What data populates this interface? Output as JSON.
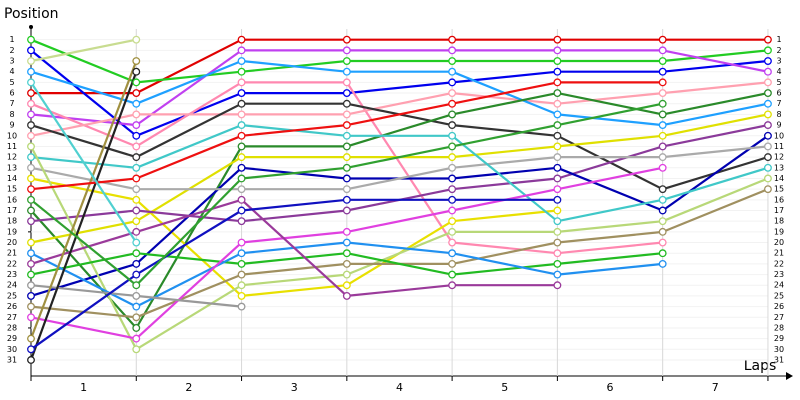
{
  "chart_data": {
    "type": "position-line",
    "y_label": "Position",
    "x_label": "Laps",
    "x": [
      0,
      1,
      2,
      3,
      4,
      5,
      6,
      7
    ],
    "xlim": [
      0,
      7.2
    ],
    "xticks": [
      {
        "value": 0.5,
        "label": "1"
      },
      {
        "value": 1.5,
        "label": "2"
      },
      {
        "value": 2.5,
        "label": "3"
      },
      {
        "value": 3.5,
        "label": "4"
      },
      {
        "value": 4.5,
        "label": "5"
      },
      {
        "value": 5.5,
        "label": "6"
      },
      {
        "value": 6.5,
        "label": "7"
      }
    ],
    "ylim": [
      32.5,
      0
    ],
    "yticks": [
      1,
      2,
      3,
      4,
      5,
      6,
      7,
      8,
      9,
      10,
      11,
      12,
      13,
      14,
      15,
      16,
      17,
      18,
      19,
      20,
      21,
      22,
      23,
      24,
      25,
      26,
      27,
      28,
      29,
      30,
      31
    ],
    "grid": true,
    "series": [
      {
        "color": "#e00000",
        "values": [
          6,
          6,
          1,
          1,
          1,
          1,
          1,
          1
        ]
      },
      {
        "color": "#22cc22",
        "values": [
          1,
          5,
          4,
          3,
          3,
          3,
          3,
          2
        ]
      },
      {
        "color": "#0000ee",
        "values": [
          2,
          10,
          6,
          6,
          5,
          4,
          4,
          3
        ]
      },
      {
        "color": "#c040f0",
        "values": [
          8,
          9,
          2,
          2,
          2,
          2,
          2,
          4
        ]
      },
      {
        "color": "#ff88b0",
        "values": [
          7,
          11,
          5,
          5,
          20,
          21,
          20,
          null
        ]
      },
      {
        "color": "#ffa0b0",
        "values": [
          10,
          8,
          8,
          8,
          6,
          7,
          6,
          5
        ]
      },
      {
        "color": "#1ea0ff",
        "values": [
          4,
          7,
          3,
          4,
          4,
          8,
          9,
          7
        ]
      },
      {
        "color": "#333333",
        "values": [
          9,
          12,
          7,
          7,
          9,
          10,
          15,
          12
        ]
      },
      {
        "color": "#2a8a2a",
        "values": [
          17,
          28,
          11,
          11,
          8,
          6,
          8,
          6
        ]
      },
      {
        "color": "#e0e000",
        "values": [
          20,
          18,
          12,
          12,
          12,
          11,
          10,
          8
        ]
      },
      {
        "color": "#e8e000",
        "values": [
          14,
          16,
          25,
          24,
          18,
          17,
          null,
          null
        ]
      },
      {
        "color": "#8b3a9a",
        "values": [
          18,
          17,
          18,
          17,
          15,
          14,
          11,
          9
        ]
      },
      {
        "color": "#0000b0",
        "values": [
          25,
          22,
          13,
          14,
          14,
          13,
          17,
          10
        ]
      },
      {
        "color": "#aaaaaa",
        "values": [
          13,
          15,
          15,
          15,
          13,
          12,
          12,
          11
        ]
      },
      {
        "color": "#40c8c8",
        "values": [
          12,
          13,
          9,
          10,
          10,
          18,
          16,
          13
        ]
      },
      {
        "color": "#b8d878",
        "values": [
          11,
          30,
          24,
          23,
          19,
          19,
          18,
          14
        ]
      },
      {
        "color": "#a09060",
        "values": [
          26,
          27,
          23,
          22,
          22,
          20,
          19,
          15
        ]
      },
      {
        "color": "#22bb22",
        "values": [
          23,
          21,
          22,
          21,
          23,
          22,
          21,
          null
        ]
      },
      {
        "color": "#2090f0",
        "values": [
          21,
          26,
          21,
          20,
          21,
          23,
          22,
          null
        ]
      },
      {
        "color": "#e040e0",
        "values": [
          27,
          29,
          20,
          19,
          17,
          15,
          13,
          null
        ]
      },
      {
        "color": "#9a3a9a",
        "values": [
          22,
          19,
          16,
          25,
          24,
          24,
          null,
          null
        ]
      },
      {
        "color": "#999999",
        "values": [
          24,
          25,
          26,
          null,
          null,
          null,
          null,
          null
        ]
      },
      {
        "color": "#222222",
        "values": [
          31,
          4,
          null,
          null,
          null,
          null,
          null,
          null
        ]
      },
      {
        "color": "#a09040",
        "values": [
          29,
          3,
          null,
          null,
          null,
          null,
          null,
          null
        ]
      },
      {
        "color": "#1010c0",
        "values": [
          30,
          23,
          17,
          16,
          16,
          16,
          null,
          null
        ]
      },
      {
        "color": "#30a030",
        "values": [
          16,
          24,
          14,
          13,
          11,
          9,
          7,
          null
        ]
      },
      {
        "color": "#ee1010",
        "values": [
          15,
          14,
          10,
          9,
          7,
          5,
          5,
          null
        ]
      },
      {
        "color": "#c8dc90",
        "values": [
          3,
          1,
          null,
          null,
          null,
          null,
          null,
          null
        ]
      },
      {
        "color": "#50d0d0",
        "values": [
          5,
          20,
          null,
          null,
          null,
          null,
          null,
          null
        ]
      }
    ]
  }
}
